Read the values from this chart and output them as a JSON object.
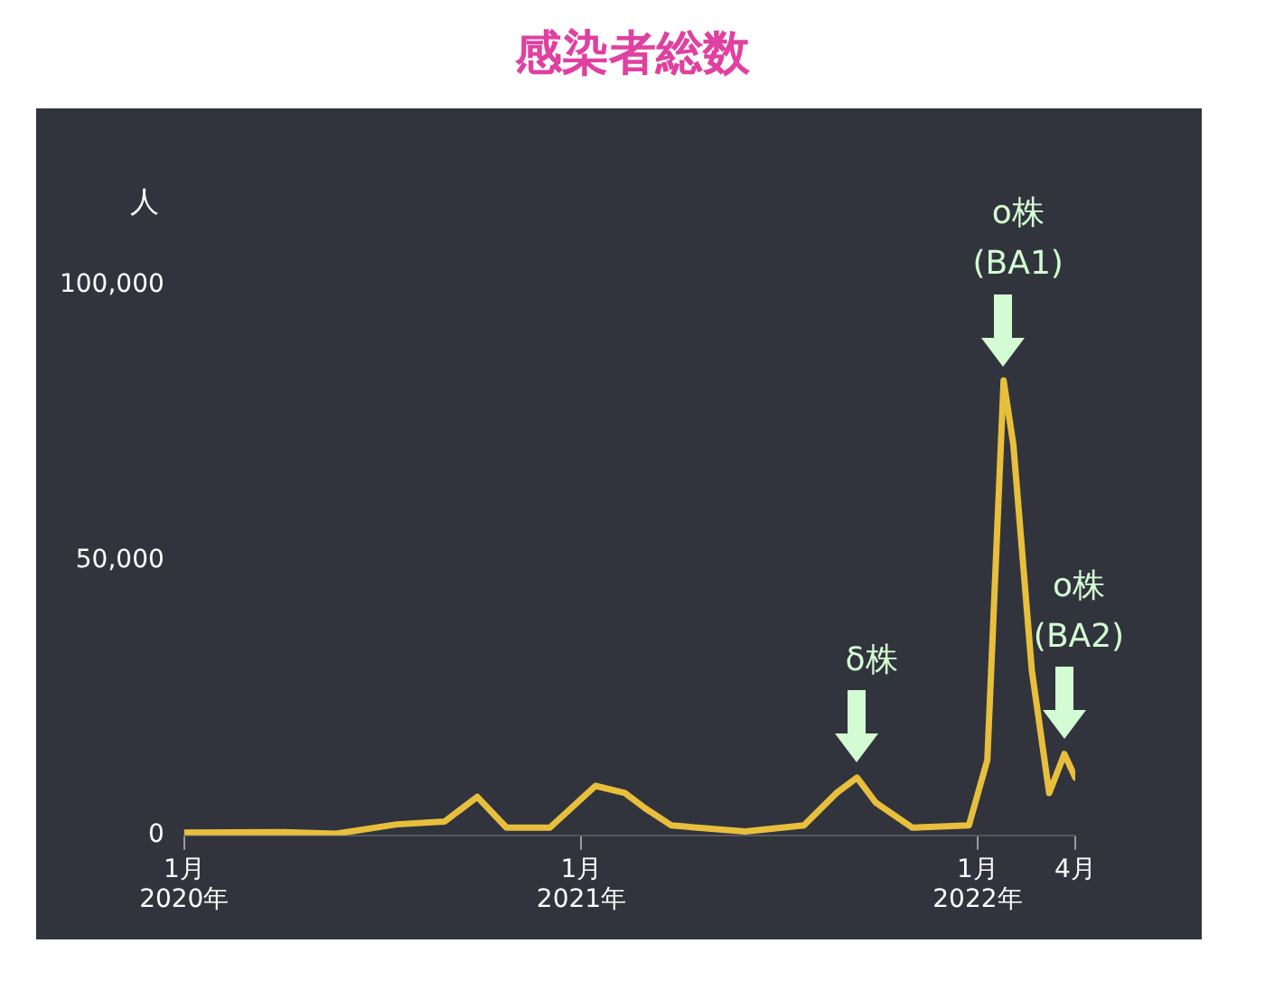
{
  "chart_data": {
    "type": "line",
    "title": "感染者総数",
    "ylabel": "人",
    "x": [
      "2020-01-01",
      "2020-04-01",
      "2020-05-20",
      "2020-07-15",
      "2020-08-28",
      "2020-09-27",
      "2020-10-24",
      "2020-12-03",
      "2021-01-14",
      "2021-02-10",
      "2021-03-01",
      "2021-03-25",
      "2021-06-01",
      "2021-07-25",
      "2021-08-24",
      "2021-09-12",
      "2021-09-29",
      "2021-11-02",
      "2021-12-24",
      "2022-01-10",
      "2022-01-25",
      "2022-02-03",
      "2022-02-20",
      "2022-03-08",
      "2022-03-22",
      "2022-04-01"
    ],
    "series": [
      {
        "color": "#e8bf3c",
        "values": [
          500,
          600,
          300,
          2000,
          2500,
          7000,
          1400,
          1400,
          9000,
          7700,
          4900,
          1800,
          700,
          1800,
          7700,
          10500,
          6000,
          1400,
          1800,
          13700,
          82700,
          71000,
          30000,
          7700,
          14800,
          10500
        ]
      }
    ],
    "xlim": [
      "2020-01-01",
      "2022-04-01"
    ],
    "xticks": [
      {
        "value": "2020-01-01",
        "label": "1月\n2020年"
      },
      {
        "value": "2021-01-01",
        "label": "1月\n2021年"
      },
      {
        "value": "2022-01-01",
        "label": "1月\n2022年"
      },
      {
        "value": "2022-04-01",
        "label": "4月"
      }
    ],
    "ylim": [
      0,
      100000
    ],
    "yticks": [
      {
        "value": 0,
        "label": "0"
      },
      {
        "value": 50000,
        "label": "50,000"
      },
      {
        "value": 100000,
        "label": "100,000"
      }
    ],
    "grid": false,
    "legend": false,
    "marker": "none",
    "line_style": "solid",
    "annotations": [
      {
        "text": "δ株",
        "x": "2021-09-12",
        "y": 10500
      },
      {
        "text": "ο株\n(BA1)",
        "x": "2022-01-25",
        "y": 82700
      },
      {
        "text": "ο株\n(BA2)",
        "x": "2022-03-22",
        "y": 14800
      }
    ]
  }
}
